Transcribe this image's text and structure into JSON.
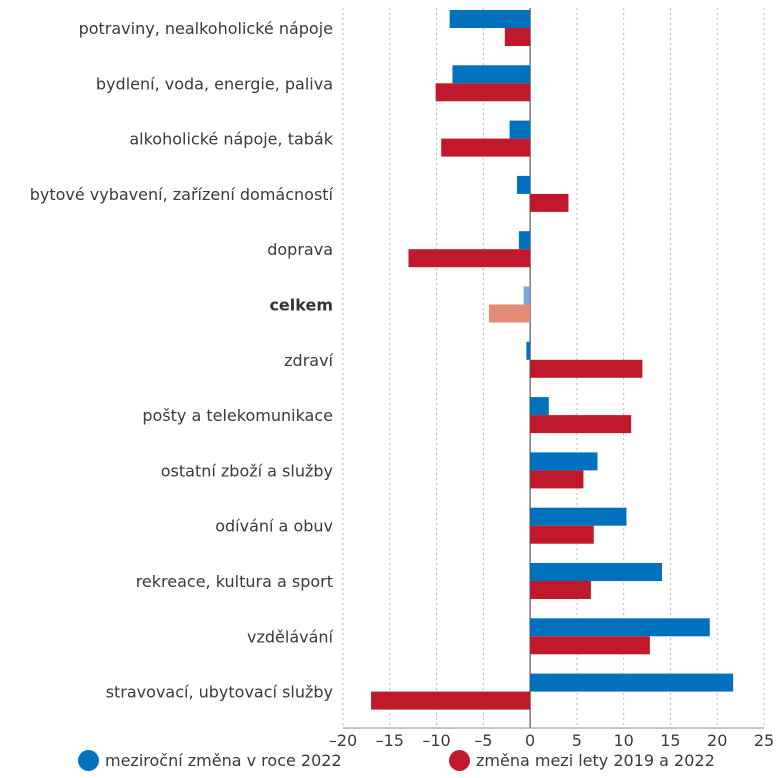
{
  "chart_data": {
    "type": "bar",
    "orientation": "horizontal",
    "categories": [
      "potraviny, nealkoholické nápoje",
      "bydlení, voda, energie, paliva",
      "alkoholické nápoje, tabák",
      "bytové vybavení, zařízení domácností",
      "doprava",
      "celkem",
      "zdraví",
      "pošty a telekomunikace",
      "ostatní zboží a služby",
      "odívání a obuv",
      "rekreace, kultura a sport",
      "vzdělávání",
      "stravovací, ubytovací služby"
    ],
    "highlight_category": "celkem",
    "series": [
      {
        "name": "meziroční změna v roce 2022",
        "color": "#0071bc",
        "highlight_color": "#7fa6d8",
        "values": [
          -8.6,
          -8.3,
          -2.2,
          -1.4,
          -1.2,
          -0.7,
          -0.4,
          2.0,
          7.2,
          10.3,
          14.1,
          19.2,
          21.7
        ]
      },
      {
        "name": "změna mezi lety 2019 a 2022",
        "color": "#c0192b",
        "highlight_color": "#e48a78",
        "values": [
          -2.7,
          -10.1,
          -9.5,
          4.1,
          -13.0,
          -4.4,
          12.0,
          10.8,
          5.7,
          6.8,
          6.5,
          12.8,
          -17.0
        ]
      }
    ],
    "xlim": [
      -20,
      25
    ],
    "xticks": [
      -20,
      -15,
      -10,
      -5,
      0,
      5,
      10,
      15,
      20,
      25
    ],
    "xtick_labels": [
      "–20",
      "–15",
      "–10",
      "–5",
      "0",
      "5",
      "10",
      "15",
      "20",
      "25"
    ],
    "grid": "vertical dotted",
    "legend_position": "bottom"
  }
}
